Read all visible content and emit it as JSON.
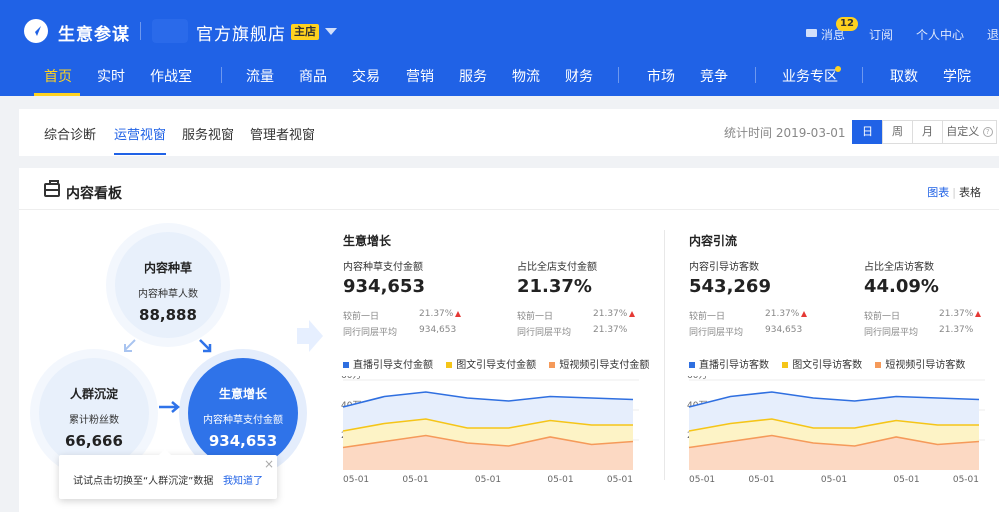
{
  "header": {
    "app_title": "生意参谋",
    "shop_name": "官方旗舰店",
    "shop_badge": "主店",
    "messages_label": "消息",
    "messages_count": "12",
    "subscribe_label": "订阅",
    "personal_center_label": "个人中心",
    "logout_label": "退"
  },
  "nav": {
    "items": [
      "首页",
      "实时",
      "作战室",
      "流量",
      "商品",
      "交易",
      "营销",
      "服务",
      "物流",
      "财务",
      "市场",
      "竞争",
      "业务专区",
      "取数",
      "学院"
    ],
    "active_index": 0
  },
  "subnav": {
    "tabs": [
      "综合诊断",
      "运营视窗",
      "服务视窗",
      "管理者视窗"
    ],
    "active_index": 1,
    "stat_time_label": "统计时间 2019-03-01",
    "periods": [
      "日",
      "周",
      "月",
      "自定义"
    ],
    "active_period": 0
  },
  "panel": {
    "title": "内容看板",
    "view_chart": "图表",
    "view_table": "表格"
  },
  "funnel": {
    "seed": {
      "title": "内容种草",
      "label": "内容种草人数",
      "value": "88,888"
    },
    "crowd": {
      "title": "人群沉淀",
      "label": "累计粉丝数",
      "value": "66,666"
    },
    "grow": {
      "title": "生意增长",
      "label": "内容种草支付金额",
      "value": "934,653"
    },
    "tooltip_text": "试试点击切换至“人群沉淀”数据",
    "tooltip_ok": "我知道了"
  },
  "growth": {
    "title": "生意增长",
    "metric1": {
      "label": "内容种草支付金额",
      "value": "934,653",
      "cmp1_label": "较前一日",
      "cmp1_value": "21.37%",
      "cmp2_label": "同行同层平均",
      "cmp2_value": "934,653"
    },
    "metric2": {
      "label": "占比全店支付金额",
      "value": "21.37%",
      "cmp1_label": "较前一日",
      "cmp1_value": "21.37%",
      "cmp2_label": "同行同层平均",
      "cmp2_value": "21.37%"
    },
    "legend": [
      "直播引导支付金额",
      "图文引导支付金额",
      "短视频引导支付金额"
    ]
  },
  "traffic": {
    "title": "内容引流",
    "metric1": {
      "label": "内容引导访客数",
      "value": "543,269",
      "cmp1_label": "较前一日",
      "cmp1_value": "21.37%",
      "cmp2_label": "同行同层平均",
      "cmp2_value": "934,653"
    },
    "metric2": {
      "label": "占比全店访客数",
      "value": "44.09%",
      "cmp1_label": "较前一日",
      "cmp1_value": "21.37%",
      "cmp2_label": "同行同层平均",
      "cmp2_value": "21.37%"
    },
    "legend": [
      "直播引导访客数",
      "图文引导访客数",
      "短视频引导访客数"
    ]
  },
  "colors": {
    "brand": "#2062e6",
    "highlight": "#ffd21f",
    "s1": "#2f6fe0",
    "s2": "#f5c518",
    "s3": "#f59a5a",
    "up": "#e53935"
  },
  "chart_data": [
    {
      "type": "area",
      "x": [
        "05-01",
        "05-01",
        "05-01",
        "05-01",
        "05-01",
        "05-01",
        "05-01",
        "05-01"
      ],
      "tick_labels_x": [
        "05-01",
        "05-01",
        "05-01",
        "05-01",
        "05-01"
      ],
      "y_ticks": [
        "60万",
        "40万",
        "20万"
      ],
      "ylim": [
        0,
        60
      ],
      "series": [
        {
          "name": "直播引导支付金额",
          "values": [
            42,
            49,
            52,
            48,
            46,
            49,
            48,
            47
          ]
        },
        {
          "name": "图文引导支付金额",
          "values": [
            26,
            31,
            34,
            28,
            28,
            33,
            30,
            30
          ]
        },
        {
          "name": "短视频引导支付金额",
          "values": [
            15,
            19,
            23,
            18,
            16,
            22,
            17,
            19
          ]
        }
      ]
    },
    {
      "type": "area",
      "x": [
        "05-01",
        "05-01",
        "05-01",
        "05-01",
        "05-01",
        "05-01",
        "05-01",
        "05-01"
      ],
      "tick_labels_x": [
        "05-01",
        "05-01",
        "05-01",
        "05-01",
        "05-01"
      ],
      "y_ticks": [
        "60万",
        "40万",
        "20万"
      ],
      "ylim": [
        0,
        60
      ],
      "series": [
        {
          "name": "直播引导访客数",
          "values": [
            42,
            49,
            52,
            48,
            46,
            49,
            48,
            47
          ]
        },
        {
          "name": "图文引导访客数",
          "values": [
            26,
            31,
            34,
            28,
            28,
            33,
            30,
            30
          ]
        },
        {
          "name": "短视频引导访客数",
          "values": [
            15,
            19,
            23,
            18,
            16,
            22,
            17,
            19
          ]
        }
      ]
    }
  ]
}
